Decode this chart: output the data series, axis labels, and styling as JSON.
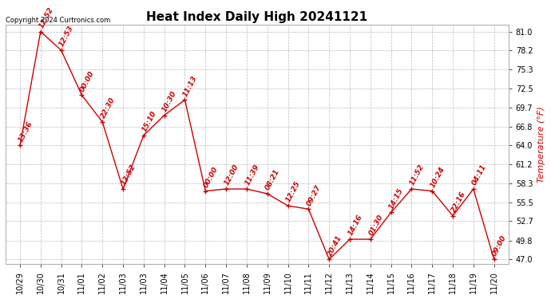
{
  "title": "Heat Index Daily High 20241121",
  "ylabel": "Temperature (°F)",
  "copyright": "Copyright 2024 Curtronics.com",
  "background_color": "#ffffff",
  "line_color": "#cc0000",
  "point_color": "#cc0000",
  "label_color": "#cc0000",
  "ylabel_color": "#cc0000",
  "x_label_map": [
    "10/29",
    "10/30",
    "10/31",
    "11/01",
    "11/02",
    "11/03",
    "11/03",
    "11/04",
    "11/05",
    "11/06",
    "11/07",
    "11/08",
    "11/09",
    "11/10",
    "11/11",
    "11/12",
    "11/13",
    "11/14",
    "11/15",
    "11/16",
    "11/17",
    "11/18",
    "11/19",
    "11/20"
  ],
  "x_axis_labels": [
    "10/29",
    "10/30",
    "10/31",
    "11/01",
    "11/02",
    "11/03",
    "11/04",
    "11/05",
    "11/06",
    "11/07",
    "11/08",
    "11/09",
    "11/10",
    "11/11",
    "11/12",
    "11/13",
    "11/14",
    "11/15",
    "11/16",
    "11/17",
    "11/18",
    "11/19",
    "11/20"
  ],
  "values": [
    64.0,
    81.0,
    78.2,
    71.5,
    67.5,
    57.5,
    65.5,
    68.5,
    70.8,
    57.2,
    57.5,
    57.5,
    56.8,
    55.0,
    54.5,
    47.0,
    50.0,
    50.0,
    54.0,
    57.5,
    57.2,
    53.5,
    57.5,
    47.0
  ],
  "time_labels": [
    "13:36",
    "12:52",
    "12:53",
    "00:00",
    "22:30",
    "13:52",
    "15:10",
    "10:30",
    "11:13",
    "00:00",
    "12:00",
    "11:39",
    "08:21",
    "12:25",
    "09:27",
    "20:41",
    "14:16",
    "01:30",
    "14:15",
    "11:52",
    "10:24",
    "22:16",
    "04:11",
    "09:00"
  ],
  "yticks": [
    47.0,
    49.8,
    52.7,
    55.5,
    58.3,
    61.2,
    64.0,
    66.8,
    69.7,
    72.5,
    75.3,
    78.2,
    81.0
  ],
  "ylim_min": 46.3,
  "ylim_max": 82.0,
  "grid_color": "#bbbbbb",
  "title_fontsize": 11,
  "label_fontsize": 6.5,
  "axis_fontsize": 7
}
